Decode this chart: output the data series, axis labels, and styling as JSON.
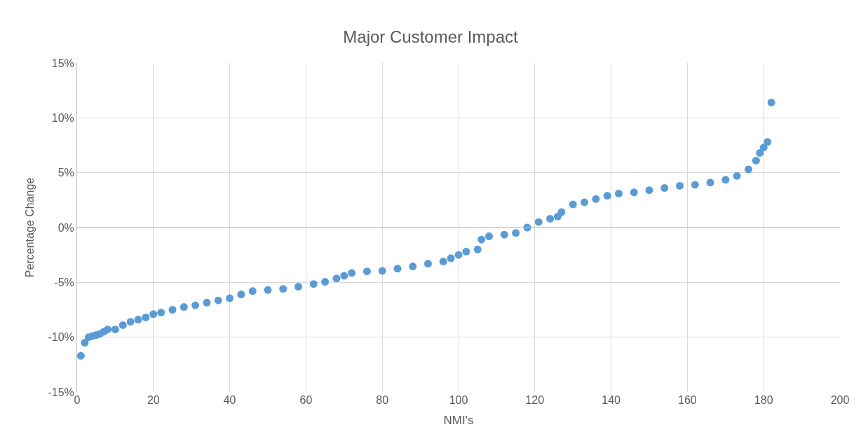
{
  "chart_data": {
    "type": "scatter",
    "title": "Major Customer Impact",
    "xlabel": "NMI's",
    "ylabel": "Percentage Change",
    "x": [
      1,
      2,
      3,
      4,
      5,
      6,
      7,
      8,
      10,
      12,
      14,
      16,
      18,
      20,
      22,
      25,
      28,
      31,
      34,
      37,
      40,
      43,
      46,
      50,
      54,
      58,
      62,
      65,
      68,
      70,
      72,
      76,
      80,
      84,
      88,
      92,
      96,
      98,
      100,
      102,
      105,
      106,
      108,
      112,
      115,
      118,
      121,
      124,
      126,
      127,
      130,
      133,
      136,
      139,
      142,
      146,
      150,
      154,
      158,
      162,
      166,
      170,
      173,
      176,
      178,
      179,
      180,
      181,
      182
    ],
    "values": [
      -11.7,
      -10.5,
      -10.0,
      -9.9,
      -9.8,
      -9.7,
      -9.5,
      -9.3,
      -9.3,
      -8.9,
      -8.6,
      -8.4,
      -8.2,
      -7.9,
      -7.75,
      -7.5,
      -7.25,
      -7.1,
      -6.85,
      -6.65,
      -6.45,
      -6.1,
      -5.8,
      -5.7,
      -5.6,
      -5.4,
      -5.15,
      -4.95,
      -4.65,
      -4.4,
      -4.15,
      -4.0,
      -3.95,
      -3.75,
      -3.55,
      -3.3,
      -3.1,
      -2.8,
      -2.5,
      -2.2,
      -2.0,
      -1.1,
      -0.8,
      -0.65,
      -0.5,
      0.0,
      0.5,
      0.8,
      1.0,
      1.4,
      2.1,
      2.3,
      2.6,
      2.9,
      3.1,
      3.2,
      3.4,
      3.6,
      3.8,
      3.9,
      4.1,
      4.35,
      4.7,
      5.3,
      6.1,
      6.8,
      7.3,
      7.8,
      11.4
    ],
    "color": "#5b9bd5",
    "marker": "circle",
    "xlim": [
      0,
      200
    ],
    "xticks": [
      0,
      20,
      40,
      60,
      80,
      100,
      120,
      140,
      160,
      180,
      200
    ],
    "ylim": [
      -15,
      15
    ],
    "yticks": [
      {
        "value": -15,
        "label": "-15%"
      },
      {
        "value": -10,
        "label": "-10%"
      },
      {
        "value": -5,
        "label": "-5%"
      },
      {
        "value": 0,
        "label": "0%"
      },
      {
        "value": 5,
        "label": "5%"
      },
      {
        "value": 10,
        "label": "10%"
      },
      {
        "value": 15,
        "label": "15%"
      }
    ],
    "grid": true,
    "legend": false
  }
}
